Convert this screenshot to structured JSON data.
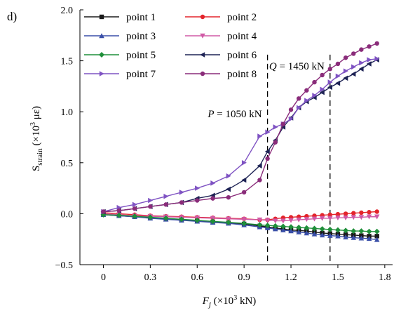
{
  "panel_label": "d)",
  "chart_data": {
    "type": "line",
    "xlabel": {
      "main": "F",
      "sub": "j",
      "unit_prefix": "(×10",
      "sup": "3",
      "unit_suffix": " kN)"
    },
    "ylabel": {
      "main": "S",
      "sub": "strain",
      "unit_prefix": "(×10",
      "sup": "3",
      "unit_suffix": " με)"
    },
    "xlim": [
      -0.15,
      1.85
    ],
    "ylim": [
      -0.5,
      2.0
    ],
    "xticks": [
      0,
      0.3,
      0.6,
      0.9,
      1.2,
      1.5,
      1.8
    ],
    "xtick_labels": [
      "0",
      "0.3",
      "0.6",
      "0.9",
      "1.2",
      "1.5",
      "1.8"
    ],
    "yticks": [
      -0.5,
      0.0,
      0.5,
      1.0,
      1.5,
      2.0
    ],
    "ytick_labels": [
      "−0.5",
      "0.0",
      "0.5",
      "1.0",
      "1.5",
      "2.0"
    ],
    "grid": false,
    "legend_position": "top-left",
    "x": [
      0,
      0.1,
      0.2,
      0.3,
      0.4,
      0.5,
      0.6,
      0.7,
      0.8,
      0.9,
      1.0,
      1.05,
      1.1,
      1.15,
      1.2,
      1.25,
      1.3,
      1.35,
      1.4,
      1.45,
      1.5,
      1.55,
      1.6,
      1.65,
      1.7,
      1.75
    ],
    "series": [
      {
        "name": "point 1",
        "color": "#1a1a1a",
        "marker": "square",
        "values": [
          -0.01,
          -0.02,
          -0.03,
          -0.04,
          -0.05,
          -0.06,
          -0.07,
          -0.08,
          -0.09,
          -0.1,
          -0.12,
          -0.13,
          -0.14,
          -0.15,
          -0.16,
          -0.165,
          -0.17,
          -0.18,
          -0.19,
          -0.195,
          -0.2,
          -0.205,
          -0.21,
          -0.215,
          -0.22,
          -0.22
        ]
      },
      {
        "name": "point 2",
        "color": "#e3242b",
        "marker": "circle",
        "values": [
          0.01,
          0.0,
          -0.01,
          -0.02,
          -0.025,
          -0.03,
          -0.035,
          -0.04,
          -0.045,
          -0.05,
          -0.06,
          -0.06,
          -0.05,
          -0.04,
          -0.035,
          -0.03,
          -0.025,
          -0.02,
          -0.015,
          -0.01,
          -0.005,
          0.0,
          0.005,
          0.01,
          0.015,
          0.02
        ]
      },
      {
        "name": "point 3",
        "color": "#3a4fa8",
        "marker": "triangle-up",
        "values": [
          -0.01,
          -0.02,
          -0.03,
          -0.045,
          -0.055,
          -0.065,
          -0.075,
          -0.085,
          -0.095,
          -0.11,
          -0.13,
          -0.14,
          -0.15,
          -0.16,
          -0.17,
          -0.18,
          -0.19,
          -0.2,
          -0.21,
          -0.215,
          -0.22,
          -0.23,
          -0.235,
          -0.24,
          -0.245,
          -0.255
        ]
      },
      {
        "name": "point 4",
        "color": "#d05aa6",
        "marker": "triangle-down",
        "values": [
          0.0,
          -0.01,
          -0.02,
          -0.025,
          -0.03,
          -0.035,
          -0.04,
          -0.045,
          -0.05,
          -0.055,
          -0.06,
          -0.065,
          -0.07,
          -0.07,
          -0.065,
          -0.06,
          -0.055,
          -0.05,
          -0.045,
          -0.045,
          -0.04,
          -0.04,
          -0.035,
          -0.035,
          -0.03,
          -0.03
        ]
      },
      {
        "name": "point 5",
        "color": "#1f8f3a",
        "marker": "diamond",
        "values": [
          -0.01,
          -0.015,
          -0.025,
          -0.035,
          -0.045,
          -0.055,
          -0.065,
          -0.075,
          -0.085,
          -0.095,
          -0.11,
          -0.115,
          -0.12,
          -0.125,
          -0.13,
          -0.135,
          -0.14,
          -0.145,
          -0.15,
          -0.155,
          -0.16,
          -0.165,
          -0.17,
          -0.17,
          -0.175,
          -0.175
        ]
      },
      {
        "name": "point 6",
        "color": "#1e2355",
        "marker": "triangle-left",
        "values": [
          0.02,
          0.03,
          0.05,
          0.07,
          0.09,
          0.11,
          0.15,
          0.18,
          0.24,
          0.33,
          0.47,
          0.61,
          0.72,
          0.85,
          0.94,
          1.04,
          1.1,
          1.14,
          1.19,
          1.24,
          1.28,
          1.33,
          1.37,
          1.42,
          1.47,
          1.51
        ]
      },
      {
        "name": "point 7",
        "color": "#7f53c3",
        "marker": "triangle-right",
        "values": [
          0.02,
          0.06,
          0.09,
          0.13,
          0.17,
          0.21,
          0.25,
          0.3,
          0.37,
          0.5,
          0.76,
          0.8,
          0.85,
          0.88,
          0.93,
          1.04,
          1.11,
          1.16,
          1.22,
          1.29,
          1.35,
          1.4,
          1.44,
          1.48,
          1.51,
          1.52
        ]
      },
      {
        "name": "point 8",
        "color": "#8a2c7a",
        "marker": "circle",
        "values": [
          0.02,
          0.03,
          0.05,
          0.07,
          0.09,
          0.11,
          0.13,
          0.15,
          0.16,
          0.21,
          0.33,
          0.54,
          0.7,
          0.88,
          1.02,
          1.13,
          1.21,
          1.29,
          1.36,
          1.42,
          1.47,
          1.53,
          1.57,
          1.61,
          1.64,
          1.67
        ]
      }
    ],
    "reference_lines": [
      {
        "x": 1.05,
        "label_var": "P",
        "label_value": " = 1050 kN",
        "label_y": 0.98
      },
      {
        "x": 1.45,
        "label_var": "Q",
        "label_value": " = 1450 kN",
        "label_y": 1.45
      }
    ]
  }
}
